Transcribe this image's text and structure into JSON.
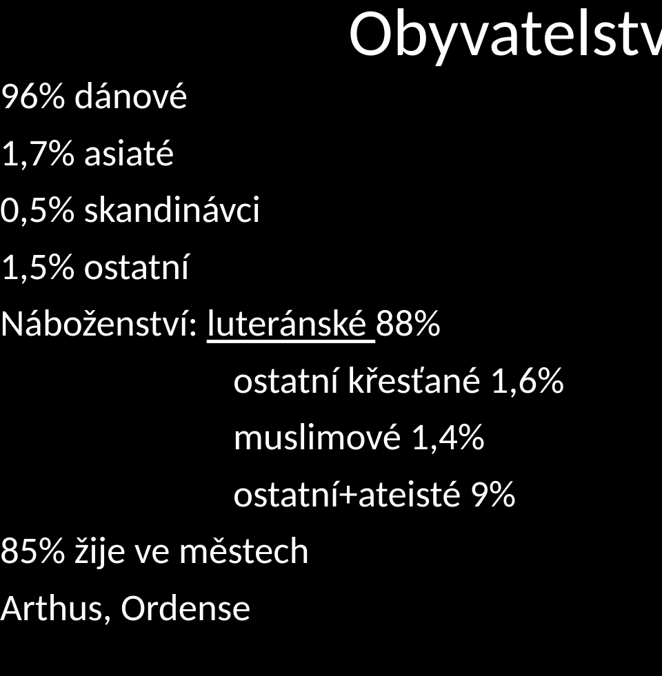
{
  "title": "Obyvatelstvo",
  "lines": {
    "l1": "96% dánové",
    "l2": "1,7% asiaté",
    "l3": "0,5% skandinávci",
    "l4": "1,5% ostatní",
    "religion_label": "Náboženství: ",
    "religion_underlined": "luteránské ",
    "religion_pct": "88%",
    "l6": "ostatní křesťané 1,6%",
    "l7": "muslimové 1,4%",
    "l8": "ostatní+ateisté 9%",
    "l9": "85% žije ve městech",
    "l10": "Arthus, Ordense"
  },
  "colors": {
    "background": "#000000",
    "text": "#ffffff"
  },
  "fonts": {
    "title_size_pt": 74,
    "body_size_pt": 41,
    "family": "Calibri"
  }
}
